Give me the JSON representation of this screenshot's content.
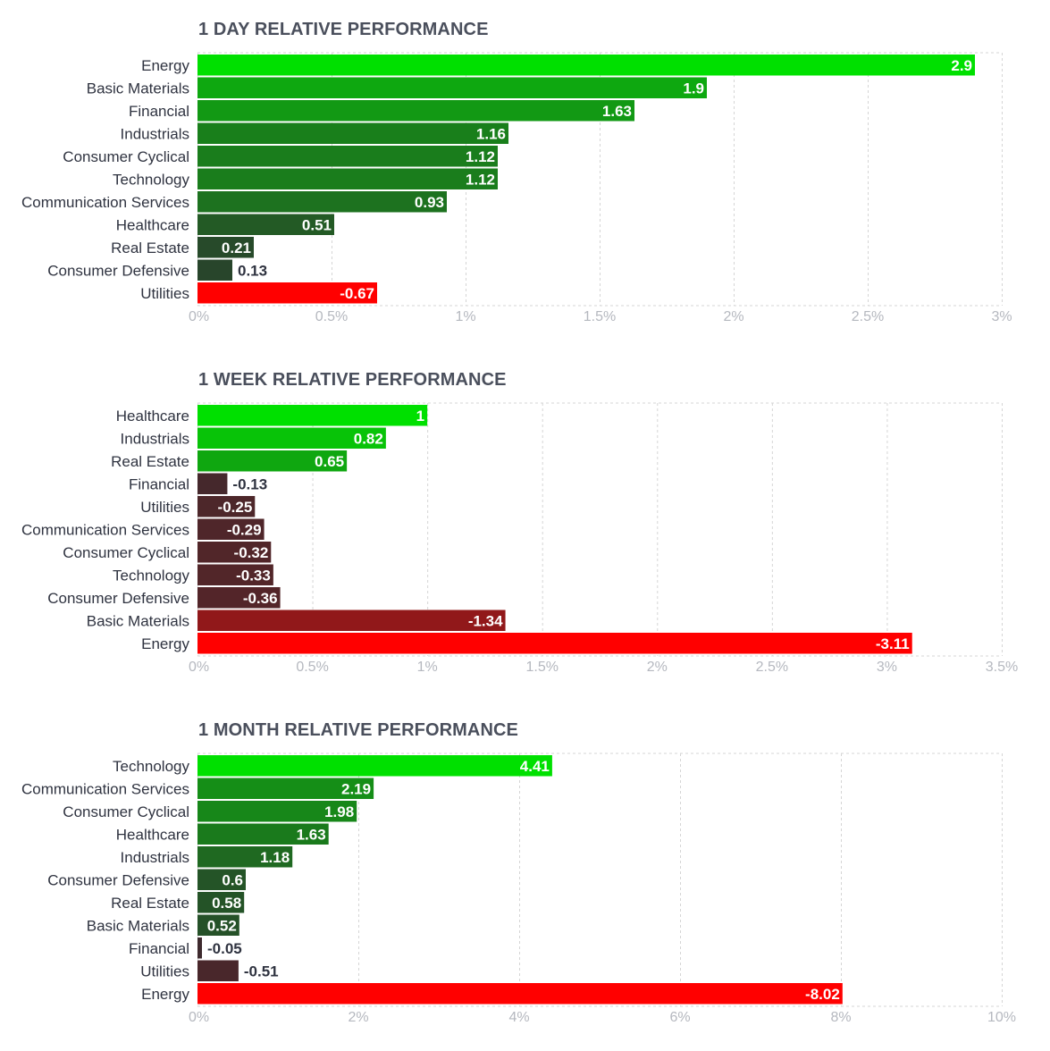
{
  "chart_data": [
    {
      "type": "bar",
      "orientation": "horizontal",
      "title": "1 DAY RELATIVE PERFORMANCE",
      "categories": [
        "Energy",
        "Basic Materials",
        "Financial",
        "Industrials",
        "Consumer Cyclical",
        "Technology",
        "Communication Services",
        "Healthcare",
        "Real Estate",
        "Consumer Defensive",
        "Utilities"
      ],
      "values": [
        2.9,
        1.9,
        1.63,
        1.16,
        1.12,
        1.12,
        0.93,
        0.51,
        0.21,
        0.13,
        -0.67
      ],
      "value_labels": [
        "2.9",
        "1.9",
        "1.63",
        "1.16",
        "1.12",
        "1.12",
        "0.93",
        "0.51",
        "0.21",
        "0.13",
        "-0.67"
      ],
      "xlim": [
        0,
        3
      ],
      "xticks": [
        0,
        0.5,
        1,
        1.5,
        2,
        2.5,
        3
      ],
      "xtick_labels": [
        "0%",
        "0.5%",
        "1%",
        "1.5%",
        "2%",
        "2.5%",
        "3%"
      ],
      "bar_magnitude": "absolute value",
      "grid": true
    },
    {
      "type": "bar",
      "orientation": "horizontal",
      "title": "1 WEEK RELATIVE PERFORMANCE",
      "categories": [
        "Healthcare",
        "Industrials",
        "Real Estate",
        "Financial",
        "Utilities",
        "Communication Services",
        "Consumer Cyclical",
        "Technology",
        "Consumer Defensive",
        "Basic Materials",
        "Energy"
      ],
      "values": [
        1,
        0.82,
        0.65,
        -0.13,
        -0.25,
        -0.29,
        -0.32,
        -0.33,
        -0.36,
        -1.34,
        -3.11
      ],
      "value_labels": [
        "1",
        "0.82",
        "0.65",
        "-0.13",
        "-0.25",
        "-0.29",
        "-0.32",
        "-0.33",
        "-0.36",
        "-1.34",
        "-3.11"
      ],
      "xlim": [
        0,
        3.5
      ],
      "xticks": [
        0,
        0.5,
        1,
        1.5,
        2,
        2.5,
        3,
        3.5
      ],
      "xtick_labels": [
        "0%",
        "0.5%",
        "1%",
        "1.5%",
        "2%",
        "2.5%",
        "3%",
        "3.5%"
      ],
      "bar_magnitude": "absolute value",
      "grid": true
    },
    {
      "type": "bar",
      "orientation": "horizontal",
      "title": "1 MONTH RELATIVE PERFORMANCE",
      "categories": [
        "Technology",
        "Communication Services",
        "Consumer Cyclical",
        "Healthcare",
        "Industrials",
        "Consumer Defensive",
        "Real Estate",
        "Basic Materials",
        "Financial",
        "Utilities",
        "Energy"
      ],
      "values": [
        4.41,
        2.19,
        1.98,
        1.63,
        1.18,
        0.6,
        0.58,
        0.52,
        -0.05,
        -0.51,
        -8.02
      ],
      "value_labels": [
        "4.41",
        "2.19",
        "1.98",
        "1.63",
        "1.18",
        "0.6",
        "0.58",
        "0.52",
        "-0.05",
        "-0.51",
        "-8.02"
      ],
      "xlim": [
        0,
        10
      ],
      "xticks": [
        0,
        2,
        4,
        6,
        8,
        10
      ],
      "xtick_labels": [
        "0%",
        "2%",
        "4%",
        "6%",
        "8%",
        "10%"
      ],
      "bar_magnitude": "absolute value",
      "grid": true
    }
  ],
  "colors": {
    "positive_max": "#00e000",
    "positive_min": "#2a3e2d",
    "negative_min": "#3d2a2e",
    "negative_max": "#ff0000",
    "label_dark": "#2f3340",
    "label_light": "#ffffff",
    "grid": "#d5d5d5",
    "tick": "#b5b8bf"
  }
}
